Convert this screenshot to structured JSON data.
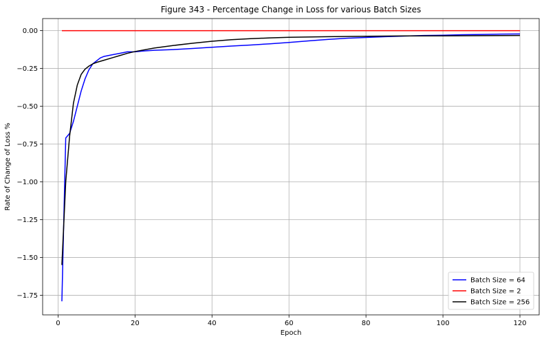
{
  "chart_data": {
    "type": "line",
    "title": "Figure 343 - Percentage Change in Loss for various Batch Sizes",
    "xlabel": "Epoch",
    "ylabel": "Rate of Change of Loss %",
    "xlim": [
      -4,
      125
    ],
    "ylim": [
      -1.88,
      0.08
    ],
    "xticks": [
      0,
      20,
      40,
      60,
      80,
      100,
      120
    ],
    "yticks": [
      0.0,
      -0.25,
      -0.5,
      -0.75,
      -1.0,
      -1.25,
      -1.5,
      -1.75
    ],
    "ytick_labels": [
      "0.00",
      "−0.25",
      "−0.50",
      "−0.75",
      "−1.00",
      "−1.25",
      "−1.50",
      "−1.75"
    ],
    "grid": true,
    "legend_position": "lower-right",
    "series": [
      {
        "name": "Batch Size = 64",
        "color": "#0000ff",
        "points": [
          [
            1,
            -1.79
          ],
          [
            2,
            -0.71
          ],
          [
            3,
            -0.68
          ],
          [
            4,
            -0.6
          ],
          [
            5,
            -0.5
          ],
          [
            6,
            -0.4
          ],
          [
            7,
            -0.32
          ],
          [
            8,
            -0.26
          ],
          [
            9,
            -0.22
          ],
          [
            10,
            -0.2
          ],
          [
            11,
            -0.18
          ],
          [
            12,
            -0.17
          ],
          [
            14,
            -0.16
          ],
          [
            16,
            -0.15
          ],
          [
            18,
            -0.14
          ],
          [
            20,
            -0.14
          ],
          [
            22,
            -0.135
          ],
          [
            25,
            -0.13
          ],
          [
            30,
            -0.125
          ],
          [
            35,
            -0.118
          ],
          [
            40,
            -0.11
          ],
          [
            45,
            -0.102
          ],
          [
            50,
            -0.095
          ],
          [
            55,
            -0.087
          ],
          [
            60,
            -0.078
          ],
          [
            65,
            -0.068
          ],
          [
            70,
            -0.058
          ],
          [
            75,
            -0.05
          ],
          [
            80,
            -0.045
          ],
          [
            85,
            -0.04
          ],
          [
            90,
            -0.036
          ],
          [
            95,
            -0.032
          ],
          [
            100,
            -0.03
          ],
          [
            105,
            -0.027
          ],
          [
            110,
            -0.025
          ],
          [
            115,
            -0.023
          ],
          [
            120,
            -0.022
          ]
        ]
      },
      {
        "name": "Batch Size = 2",
        "color": "#ff0000",
        "points": [
          [
            1,
            0.0
          ],
          [
            120,
            0.0
          ]
        ]
      },
      {
        "name": "Batch Size = 256",
        "color": "#000000",
        "points": [
          [
            1,
            -1.55
          ],
          [
            2,
            -1.0
          ],
          [
            3,
            -0.7
          ],
          [
            4,
            -0.48
          ],
          [
            5,
            -0.36
          ],
          [
            6,
            -0.29
          ],
          [
            7,
            -0.255
          ],
          [
            8,
            -0.235
          ],
          [
            9,
            -0.22
          ],
          [
            10,
            -0.21
          ],
          [
            12,
            -0.195
          ],
          [
            14,
            -0.18
          ],
          [
            16,
            -0.165
          ],
          [
            18,
            -0.15
          ],
          [
            20,
            -0.138
          ],
          [
            25,
            -0.115
          ],
          [
            30,
            -0.098
          ],
          [
            35,
            -0.083
          ],
          [
            40,
            -0.07
          ],
          [
            45,
            -0.06
          ],
          [
            50,
            -0.053
          ],
          [
            55,
            -0.048
          ],
          [
            60,
            -0.044
          ],
          [
            70,
            -0.04
          ],
          [
            80,
            -0.037
          ],
          [
            90,
            -0.035
          ],
          [
            100,
            -0.034
          ],
          [
            110,
            -0.033
          ],
          [
            120,
            -0.032
          ]
        ]
      }
    ]
  }
}
